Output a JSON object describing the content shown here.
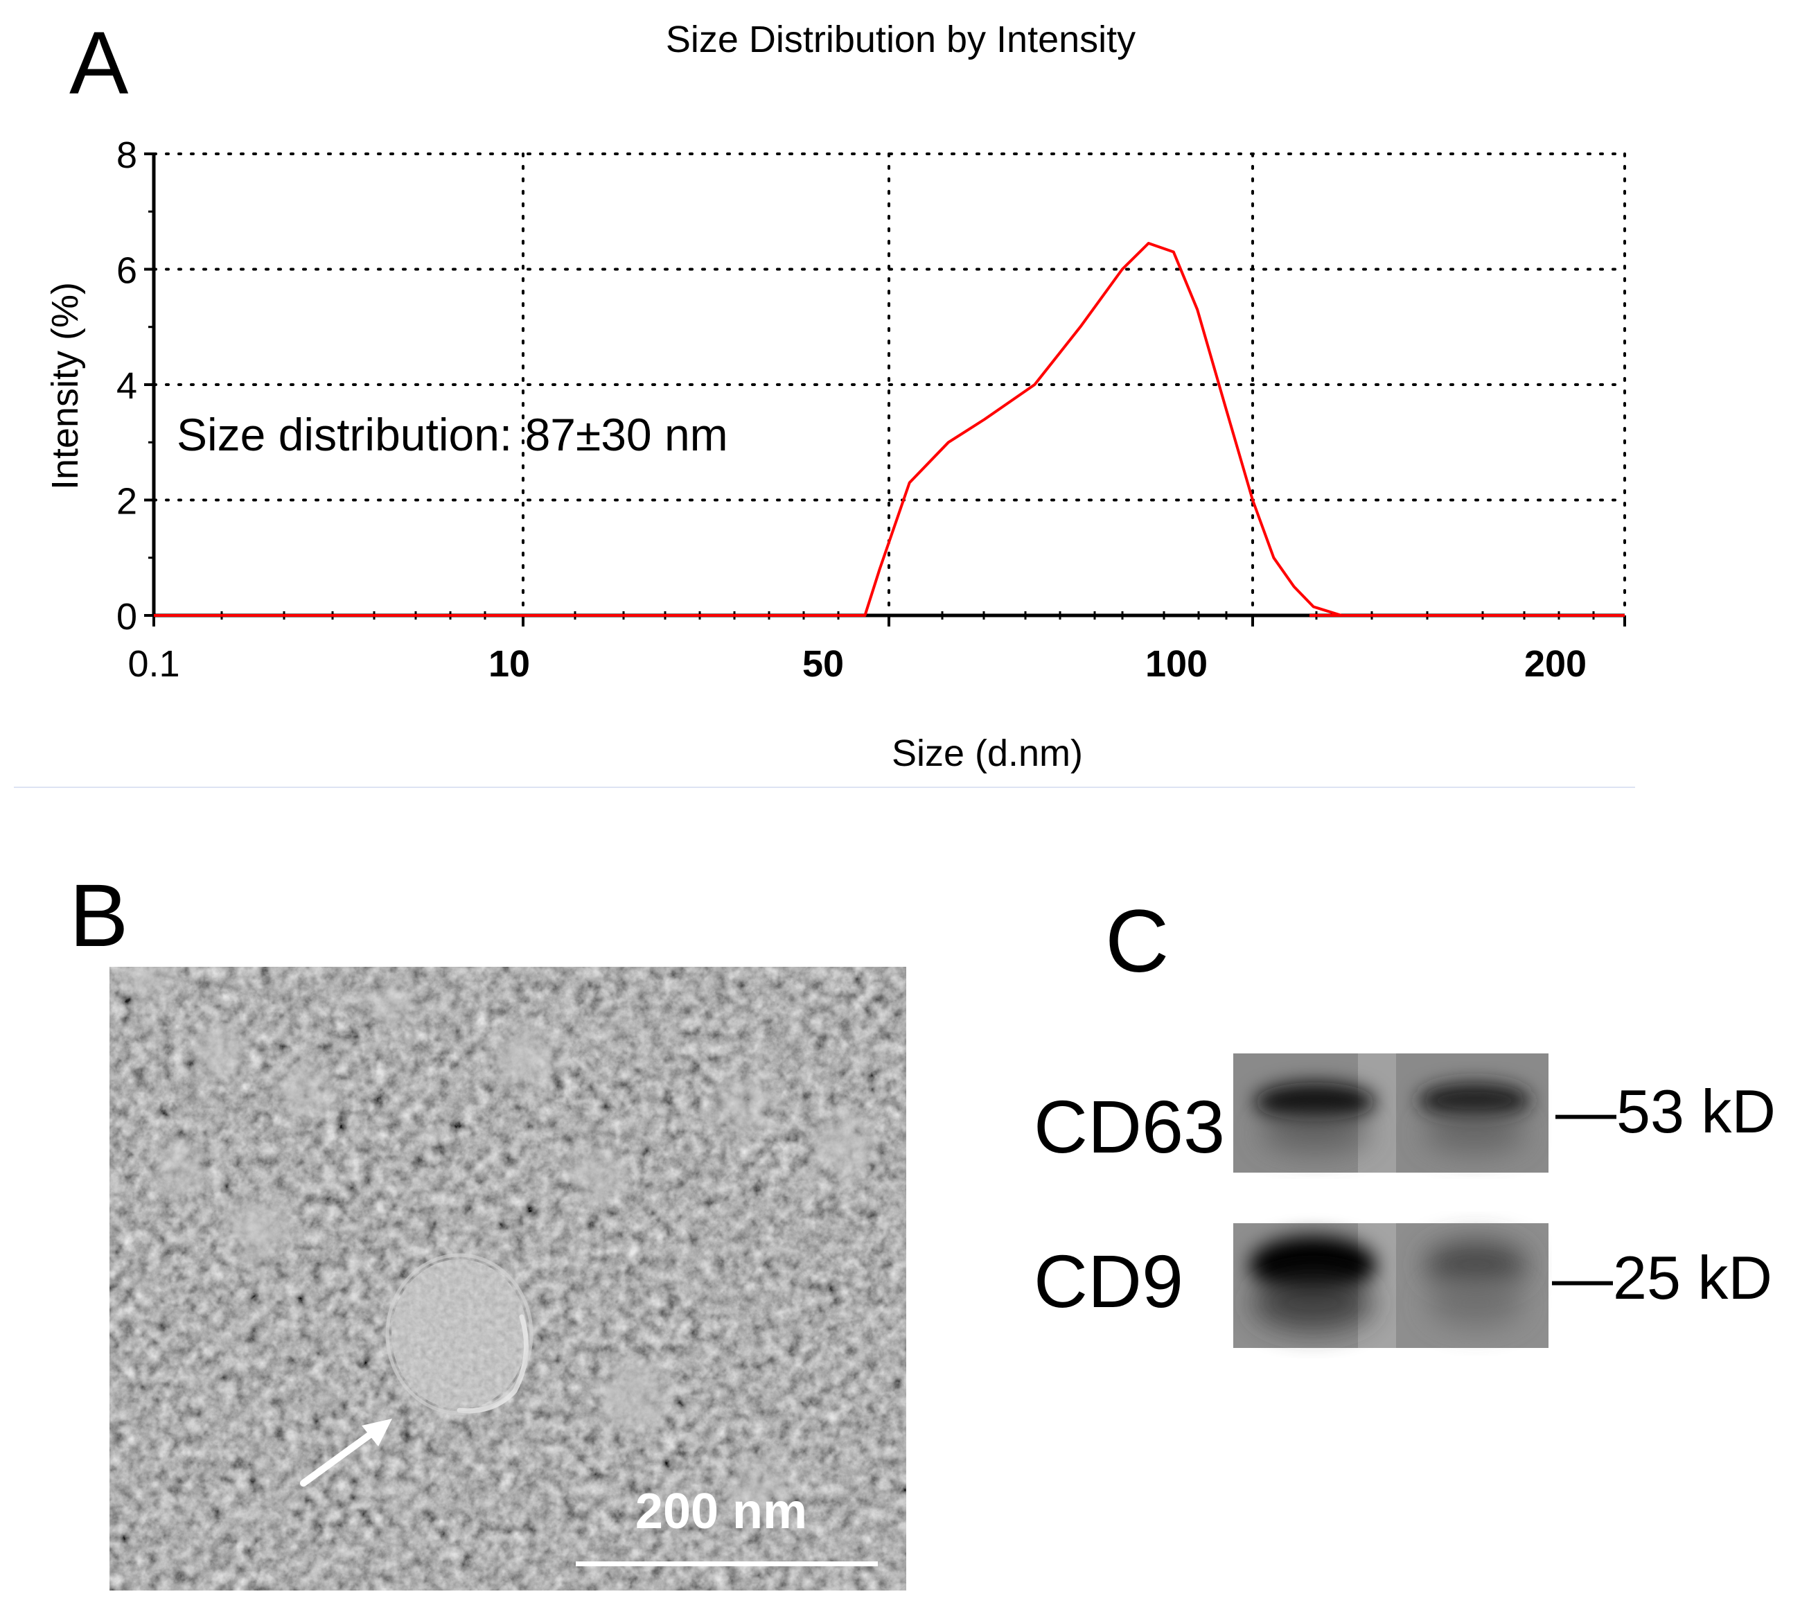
{
  "panels": {
    "a": "A",
    "b": "B",
    "c": "C"
  },
  "chart_data": {
    "type": "line",
    "title": "Size Distribution by Intensity",
    "xlabel": "Size (d.nm)",
    "ylabel": "Intensity (%)",
    "x_scale": "categorical-log-style",
    "x_ticks": [
      "0.1",
      "10",
      "50",
      "100",
      "200"
    ],
    "y_ticks": [
      "0",
      "2",
      "4",
      "6",
      "8"
    ],
    "ylim": [
      0,
      8
    ],
    "grid": true,
    "annotation": "Size distribution: 87±30 nm",
    "series": [
      {
        "name": "Intensity",
        "color": "#ff0000",
        "x": [
          0.1,
          3,
          10,
          30,
          45,
          48,
          52,
          56,
          60,
          66,
          72,
          78,
          82,
          86,
          90,
          95,
          100,
          104,
          108,
          112,
          118,
          130,
          200,
          250
        ],
        "y": [
          0,
          0,
          0,
          0,
          0,
          0.8,
          2.3,
          3.0,
          3.4,
          4.0,
          5.0,
          6.0,
          6.45,
          6.3,
          5.3,
          3.6,
          2.0,
          1.0,
          0.5,
          0.15,
          0.0,
          0,
          0,
          0
        ]
      }
    ]
  },
  "tem": {
    "scale_bar_label": "200 nm"
  },
  "western_blot": {
    "rows": [
      {
        "protein": "CD63",
        "marker": "—53 kD"
      },
      {
        "protein": "CD9",
        "marker": "—25 kD"
      }
    ]
  }
}
